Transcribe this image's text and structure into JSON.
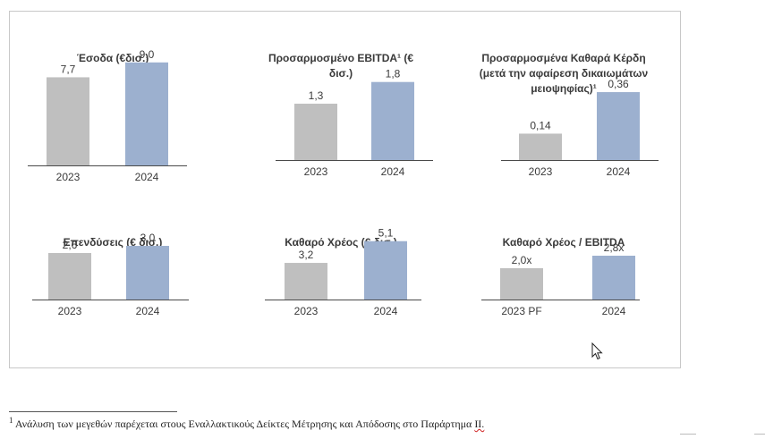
{
  "colors": {
    "bar_2023": "#bfbfbf",
    "bar_2024": "#9cb0cf",
    "axis": "#4a4a4a",
    "text": "#3a3a3a"
  },
  "chart_data": [
    {
      "type": "bar",
      "title": "Έσοδα (€δισ.)",
      "categories": [
        "2023",
        "2024"
      ],
      "values": [
        7.7,
        9.0
      ],
      "value_labels": [
        "7,7",
        "9,0"
      ],
      "bar_colors": [
        "#bfbfbf",
        "#9cb0cf"
      ]
    },
    {
      "type": "bar",
      "title": "Προσαρμοσμένο EBITDA¹ (€ δισ.)",
      "categories": [
        "2023",
        "2024"
      ],
      "values": [
        1.3,
        1.8
      ],
      "value_labels": [
        "1,3",
        "1,8"
      ],
      "bar_colors": [
        "#bfbfbf",
        "#9cb0cf"
      ]
    },
    {
      "type": "bar",
      "title": "Προσαρμοσμένα Καθαρά Κέρδη\n(μετά την αφαίρεση δικαιωμάτων\nμειοψηφίας)¹",
      "categories": [
        "2023",
        "2024"
      ],
      "values": [
        0.14,
        0.36
      ],
      "value_labels": [
        "0,14",
        "0,36"
      ],
      "bar_colors": [
        "#bfbfbf",
        "#9cb0cf"
      ]
    },
    {
      "type": "bar",
      "title": "Επενδύσεις (€ δισ.)",
      "categories": [
        "2023",
        "2024"
      ],
      "values": [
        2.6,
        3.0
      ],
      "value_labels": [
        "2,6",
        "3,0"
      ],
      "bar_colors": [
        "#bfbfbf",
        "#9cb0cf"
      ]
    },
    {
      "type": "bar",
      "title": "Καθαρό Χρέος (€ δισ.)",
      "categories": [
        "2023",
        "2024"
      ],
      "values": [
        3.2,
        5.1
      ],
      "value_labels": [
        "3,2",
        "5,1"
      ],
      "bar_colors": [
        "#bfbfbf",
        "#9cb0cf"
      ]
    },
    {
      "type": "bar",
      "title": "Καθαρό Χρέος / EBITDA",
      "categories": [
        "2023 PF",
        "2024"
      ],
      "values": [
        2.0,
        2.8
      ],
      "value_labels": [
        "2,0x",
        "2,8x"
      ],
      "bar_colors": [
        "#bfbfbf",
        "#9cb0cf"
      ]
    }
  ],
  "footnote": {
    "marker": "1",
    "text": " Ανάλυση των μεγεθών παρέχεται στους Εναλλακτικούς Δείκτες Μέτρησης και Απόδοσης στο Παράρτημα ",
    "last_word": "ΙΙ."
  }
}
